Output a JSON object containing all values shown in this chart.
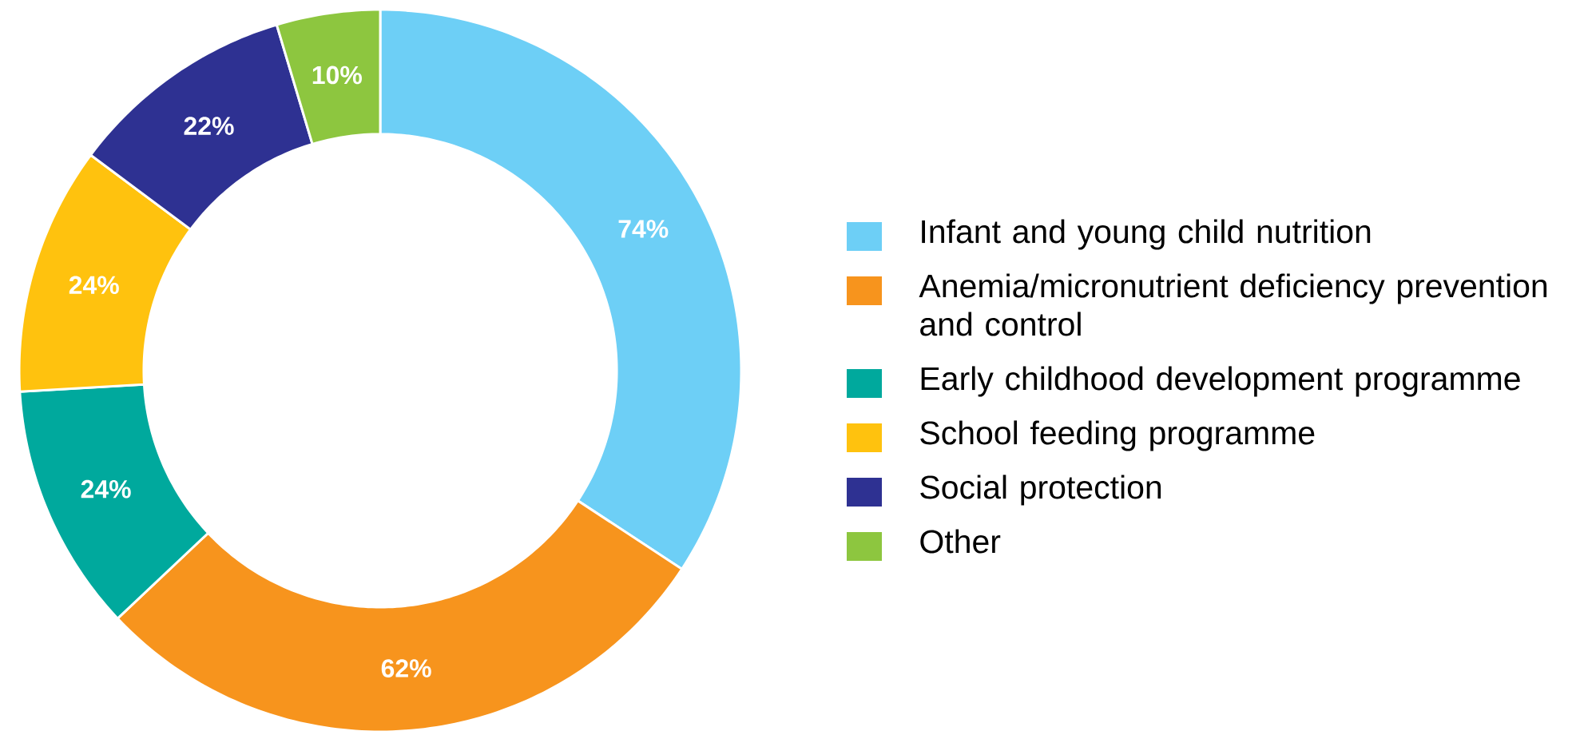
{
  "chart_data": {
    "type": "donut",
    "categories": [
      "Infant and young child nutrition",
      "Anemia/micronutrient deficiency prevention and control",
      "Early childhood development programme",
      "School feeding programme",
      "Social protection",
      "Other"
    ],
    "values": [
      74,
      62,
      24,
      24,
      22,
      10
    ],
    "value_labels": [
      "74%",
      "62%",
      "24%",
      "24%",
      "22%",
      "10%"
    ],
    "colors": [
      "#6dcff6",
      "#f7941d",
      "#00a99d",
      "#ffc20e",
      "#2e3192",
      "#8dc63f"
    ],
    "legend": "right"
  }
}
